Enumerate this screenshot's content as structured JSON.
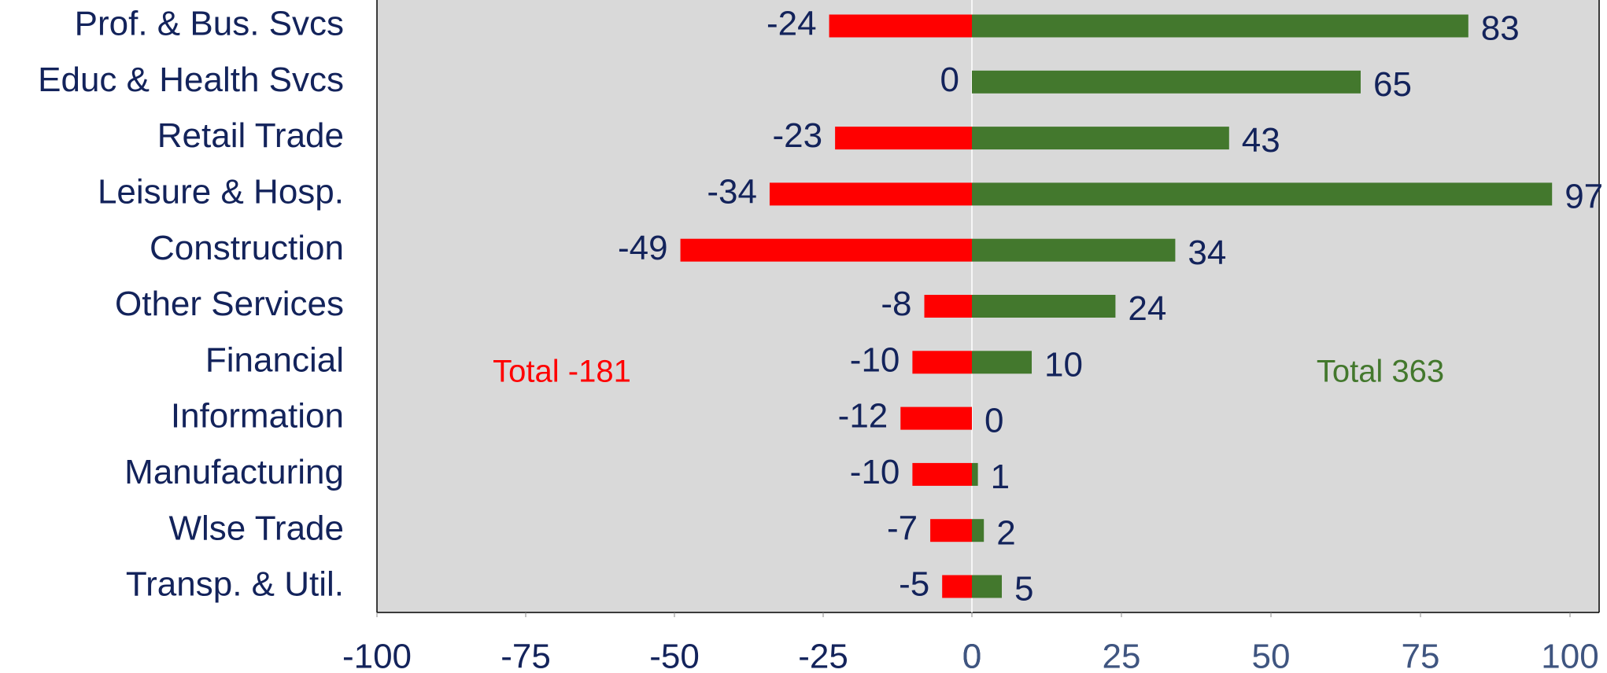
{
  "chart_data": {
    "type": "bar",
    "orientation": "horizontal",
    "categories": [
      "Prof. & Bus. Svcs",
      "Educ & Health Svcs",
      "Retail Trade",
      "Leisure & Hosp.",
      "Construction",
      "Other Services",
      "Financial",
      "Information",
      "Manufacturing",
      "Wlse Trade",
      "Transp. & Util."
    ],
    "series": [
      {
        "color": "#ff0000",
        "values": [
          -24,
          0,
          -23,
          -34,
          -49,
          -8,
          -10,
          -12,
          -10,
          -7,
          -5
        ]
      },
      {
        "color": "#43782d",
        "axis": "x2",
        "values": [
          83,
          65,
          43,
          97,
          34,
          24,
          10,
          0,
          1,
          2,
          5
        ]
      }
    ],
    "annotations": [
      {
        "text": "Total -181",
        "color": "#ff0000"
      },
      {
        "text": "Total 363",
        "color": "#43782d"
      }
    ],
    "xlim": [
      -100,
      0
    ],
    "xticks": [
      -100,
      -75,
      -50,
      -25,
      0
    ],
    "xtick_color": "#13235b",
    "x2lim": [
      0,
      100
    ],
    "x2ticks": [
      0,
      25,
      50,
      75,
      100
    ],
    "x2tick_color": "#3f5580",
    "label_color": "#13235b",
    "background": "#d9d9d9"
  }
}
